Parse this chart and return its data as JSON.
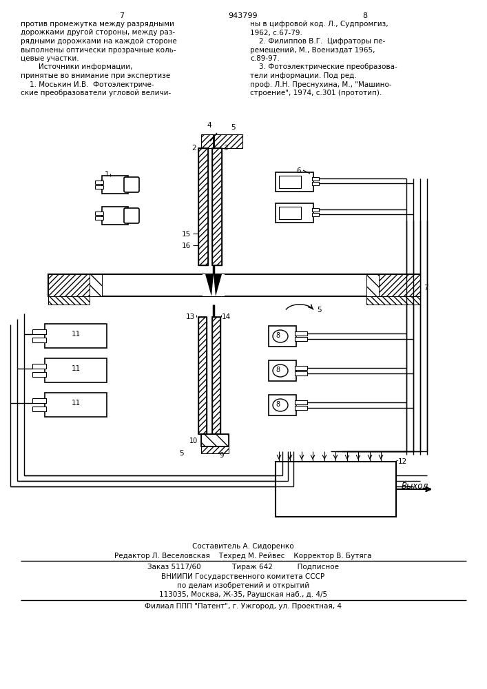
{
  "bg_color": "#ffffff",
  "page_number_left": "7",
  "page_number_center": "943799",
  "page_number_right": "8",
  "text_col1_lines": [
    "против промежутка между разрядными",
    "дорожками другой стороны, между раз-",
    "рядными дорожками на каждой стороне",
    "выполнены оптически прозрачные коль-",
    "цевые участки.",
    "        Источники информации,",
    "принятые во внимание при экспертизе",
    "    1. Моськин И.В.  Фотоэлектриче-",
    "ские преобразователи угловой величи-"
  ],
  "text_col2_lines": [
    "ны в цифровой код. Л., Судпромгиз,",
    "1962, с.67-79.",
    "    2. Филиппов В.Г.  Цифраторы пе-",
    "ремещений, М., Воениздат 1965,",
    "с.89-97.",
    "    3. Фотоэлектрические преобразова-",
    "тели информации. Под ред.",
    "проф. Л.Н. Преснухина, М., \"Машино-",
    "строение\", 1974, с.301 (прототип)."
  ],
  "footer_lines": [
    "Составитель А. Сидоренко",
    "Редактор Л. Веселовская    Техред М. Рейвес    Корректор В. Бутяга",
    "Заказ 5117/60              Тираж 642           Подписное",
    "ВНИИПИ Государственного комитета СССР",
    "по делам изобретений и открытий",
    "113035, Москва, Ж-35, Раушская наб., д. 4/5",
    "Филиал ППП \"Патент\", г. Ужгород, ул. Проектная, 4"
  ]
}
